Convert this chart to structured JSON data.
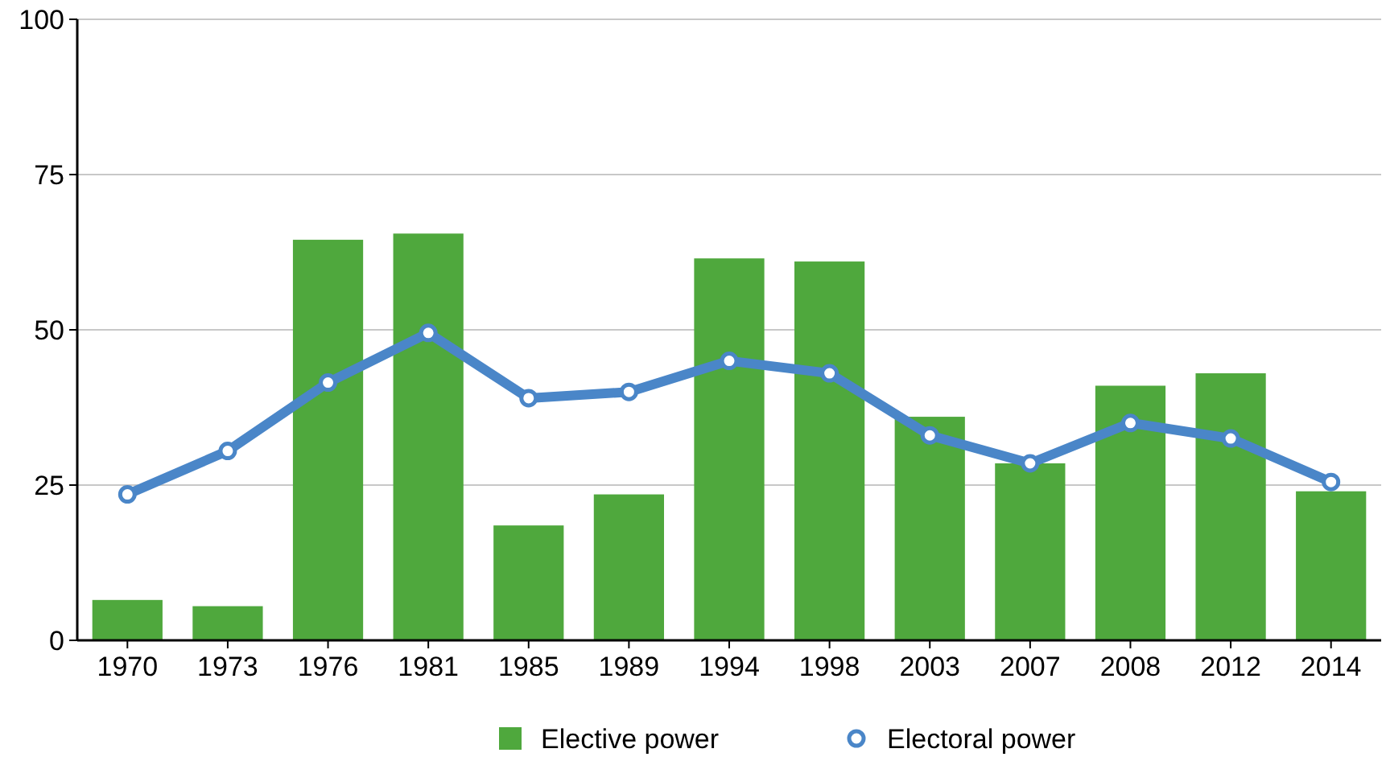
{
  "chart_data": {
    "type": "bar",
    "categories": [
      "1970",
      "1973",
      "1976",
      "1981",
      "1985",
      "1989",
      "1994",
      "1998",
      "2003",
      "2007",
      "2008",
      "2012",
      "2014"
    ],
    "series": [
      {
        "name": "Elective power",
        "color": "#4fa83d",
        "values": [
          6.5,
          5.5,
          64.5,
          65.5,
          18.5,
          23.5,
          61.5,
          61,
          36,
          28.5,
          41,
          43,
          24
        ]
      },
      {
        "name": "Electoral power",
        "type": "line",
        "color": "#4a86c8",
        "values": [
          23.5,
          30.5,
          41.5,
          49.5,
          39,
          40,
          45,
          43,
          33,
          28.5,
          35,
          32.5,
          25.5
        ]
      }
    ],
    "ylim": [
      0,
      100
    ],
    "yticks": [
      0,
      25,
      50,
      75,
      100
    ],
    "grid": "y",
    "legend": "bottom",
    "marker": "circle"
  }
}
